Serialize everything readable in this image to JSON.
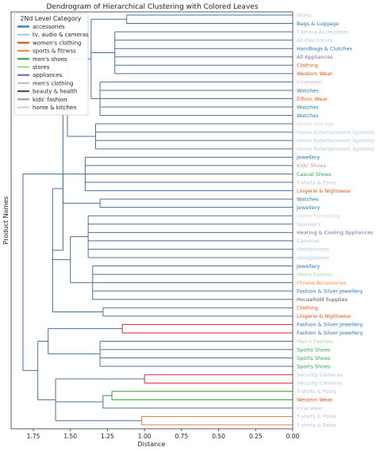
{
  "chart_data": {
    "type": "dendrogram",
    "title": "Dendrogram of Hierarchical Clustering with Colored Leaves",
    "xlabel": "Distance",
    "ylabel": "Product Names",
    "xlim": [
      1.9,
      0.0
    ],
    "xticks": [
      "1.75",
      "1.50",
      "1.25",
      "1.00",
      "0.75",
      "0.50",
      "0.25",
      "0.00"
    ],
    "xtick_values": [
      1.75,
      1.5,
      1.25,
      1.0,
      0.75,
      0.5,
      0.25,
      0.0
    ],
    "legend": {
      "title": "2Nd Level Category",
      "placement": "top-left",
      "entries": [
        {
          "label": "accessories",
          "color": "#1f77b4"
        },
        {
          "label": "tv, audio & cameras",
          "color": "#aec7e8"
        },
        {
          "label": "women's clothing",
          "color": "#e6550d"
        },
        {
          "label": "sports & fitness",
          "color": "#fd8d3c"
        },
        {
          "label": "men's shoes",
          "color": "#31a354"
        },
        {
          "label": "stores",
          "color": "#a1d99b"
        },
        {
          "label": "appliances",
          "color": "#756bb1"
        },
        {
          "label": "men's clothing",
          "color": "#bcbddc"
        },
        {
          "label": "beauty & health",
          "color": "#525252"
        },
        {
          "label": "kids' fashion",
          "color": "#a0a0a0"
        },
        {
          "label": "home & kitchen",
          "color": "#d0d0d0"
        }
      ]
    },
    "leaves": [
      {
        "label": "Shirts",
        "color": "#bcbddc"
      },
      {
        "label": "Bags & Luggage",
        "color": "#1f77b4"
      },
      {
        "label": "Camera Accessories",
        "color": "#aec7e8"
      },
      {
        "label": "All Electronics",
        "color": "#aec7e8"
      },
      {
        "label": "Handbags & Clutches",
        "color": "#1f77b4"
      },
      {
        "label": "All Appliances",
        "color": "#756bb1"
      },
      {
        "label": "Clothing",
        "color": "#e6550d"
      },
      {
        "label": "Western Wear",
        "color": "#e6550d"
      },
      {
        "label": "Innerwear",
        "color": "#bcbddc"
      },
      {
        "label": "Watches",
        "color": "#1f77b4"
      },
      {
        "label": "Ethnic Wear",
        "color": "#e6550d"
      },
      {
        "label": "Watches",
        "color": "#1f77b4"
      },
      {
        "label": "Watches",
        "color": "#1f77b4"
      },
      {
        "label": "Home Storage",
        "color": "#d0d0d0"
      },
      {
        "label": "Home Entertainment Systems",
        "color": "#aec7e8"
      },
      {
        "label": "Home Entertainment Systems",
        "color": "#aec7e8"
      },
      {
        "label": "Home Entertainment Systems",
        "color": "#aec7e8"
      },
      {
        "label": "Jewellery",
        "color": "#1f77b4"
      },
      {
        "label": "Kids' Shoes",
        "color": "#a0a0a0"
      },
      {
        "label": "Casual Shoes",
        "color": "#31a354"
      },
      {
        "label": "T-shirts & Polos",
        "color": "#bcbddc"
      },
      {
        "label": "Lingerie & Nightwear",
        "color": "#e6550d"
      },
      {
        "label": "Watches",
        "color": "#1f77b4"
      },
      {
        "label": "Jewellery",
        "color": "#1f77b4"
      },
      {
        "label": "Home Furnishing",
        "color": "#d0d0d0"
      },
      {
        "label": "Speakers",
        "color": "#aec7e8"
      },
      {
        "label": "Heating & Cooling Appliances",
        "color": "#756bb1"
      },
      {
        "label": "Cameras",
        "color": "#aec7e8"
      },
      {
        "label": "Headphones",
        "color": "#aec7e8"
      },
      {
        "label": "Headphones",
        "color": "#aec7e8"
      },
      {
        "label": "Jewellery",
        "color": "#1f77b4"
      },
      {
        "label": "Men's Fashion",
        "color": "#a1d99b"
      },
      {
        "label": "Fitness Accessories",
        "color": "#fd8d3c"
      },
      {
        "label": "Fashion & Silver Jewellery",
        "color": "#1f77b4"
      },
      {
        "label": "Household Supplies",
        "color": "#525252"
      },
      {
        "label": "Clothing",
        "color": "#e6550d"
      },
      {
        "label": "Lingerie & Nightwear",
        "color": "#e6550d"
      },
      {
        "label": "Fashion & Silver Jewellery",
        "color": "#1f77b4"
      },
      {
        "label": "Fashion & Silver Jewellery",
        "color": "#1f77b4"
      },
      {
        "label": "Men's Fashion",
        "color": "#a1d99b"
      },
      {
        "label": "Sports Shoes",
        "color": "#31a354"
      },
      {
        "label": "Sports Shoes",
        "color": "#31a354"
      },
      {
        "label": "Sports Shoes",
        "color": "#31a354"
      },
      {
        "label": "Security Cameras",
        "color": "#aec7e8"
      },
      {
        "label": "Security Cameras",
        "color": "#aec7e8"
      },
      {
        "label": "T-shirts & Polos",
        "color": "#bcbddc"
      },
      {
        "label": "Western Wear",
        "color": "#e6550d"
      },
      {
        "label": "Innerwear",
        "color": "#bcbddc"
      },
      {
        "label": "T-shirts & Polos",
        "color": "#bcbddc"
      },
      {
        "label": "T-shirts & Polos",
        "color": "#bcbddc"
      }
    ],
    "link_colors": {
      "default": "#4a6f9a",
      "red": "#d62728",
      "green": "#2ca02c",
      "orange": "#e57f4a"
    },
    "tree": {
      "h": 1.82,
      "c": [
        {
          "h": 1.55,
          "c": [
            {
              "h": 1.52,
              "c": [
                {
                  "h": 1.36,
                  "c": [
                    {
                      "h": 1.12,
                      "c": [
                        0,
                        1
                      ]
                    },
                    {
                      "h": 1.2,
                      "c": [
                        2,
                        3,
                        4,
                        5,
                        6,
                        7
                      ]
                    },
                    {
                      "h": 1.3,
                      "c": [
                        8,
                        9,
                        10,
                        11,
                        12
                      ]
                    }
                  ]
                },
                {
                  "h": 1.33,
                  "c": [
                    13,
                    14,
                    15,
                    16
                  ]
                }
              ]
            },
            {
              "h": 1.62,
              "c": [
                {
                  "h": 1.55,
                  "c": [
                    {
                      "h": 1.4,
                      "c": [
                        17,
                        18,
                        19,
                        20,
                        21
                      ]
                    },
                    {
                      "h": 1.3,
                      "c": [
                        22,
                        23
                      ]
                    }
                  ]
                },
                {
                  "h": 1.5,
                  "c": [
                    {
                      "h": 1.38,
                      "c": [
                        24,
                        25,
                        26,
                        27,
                        28,
                        29
                      ]
                    },
                    {
                      "h": 1.35,
                      "c": [
                        30,
                        31,
                        32,
                        33,
                        34
                      ]
                    }
                  ]
                },
                {
                  "h": 1.28,
                  "c": [
                    35,
                    36
                  ]
                }
              ]
            }
          ]
        },
        {
          "h": 1.72,
          "c": [
            {
              "h": 1.65,
              "c": [
                {
                  "h": 1.15,
                  "c": [
                    37,
                    38
                  ],
                  "color": "red"
                },
                {
                  "h": 1.3,
                  "c": [
                    39,
                    40,
                    41,
                    42
                  ]
                }
              ]
            },
            {
              "h": 1.6,
              "c": [
                {
                  "h": 1.0,
                  "c": [
                    43,
                    44
                  ],
                  "color": "red"
                },
                {
                  "h": 1.28,
                  "c": [
                    {
                      "h": 1.22,
                      "c": [
                        45,
                        46
                      ],
                      "color": "green"
                    },
                    47
                  ]
                },
                {
                  "h": 1.02,
                  "c": [
                    48,
                    49
                  ],
                  "color": "orange"
                }
              ]
            }
          ]
        }
      ]
    }
  }
}
